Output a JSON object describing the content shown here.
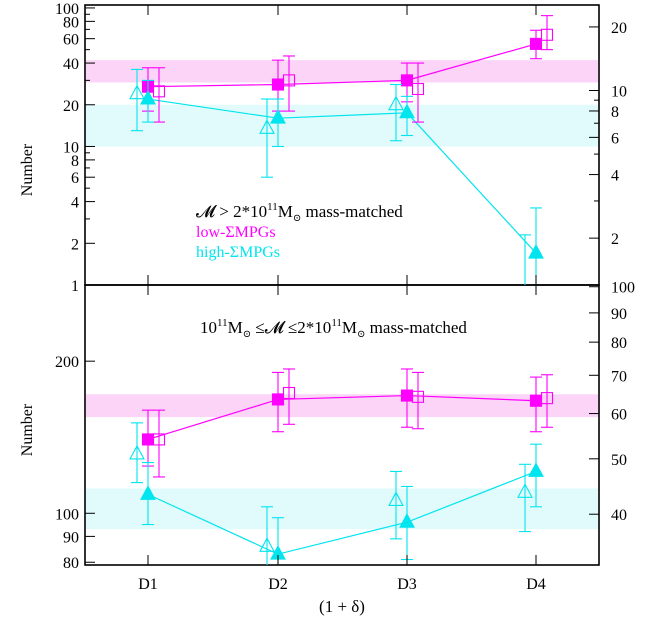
{
  "colors": {
    "low": "#ff00ff",
    "high": "#00e5ee",
    "low_band": "#fbd4f7",
    "high_band": "#e1fbfc"
  },
  "chart_data": [
    {
      "type": "line",
      "scale": "log",
      "ylabel": "Number",
      "xlabel": "",
      "categories": [
        "D1",
        "D2",
        "D3",
        "D4"
      ],
      "ylim": [
        1,
        100
      ],
      "yticks_left": [
        "1",
        "2",
        "4",
        "6",
        "8",
        "10",
        "20",
        "40",
        "60",
        "80",
        "100"
      ],
      "yticks_right": [
        "2",
        "4",
        "6",
        "8",
        "10",
        "20"
      ],
      "annotation": {
        "title_main": "𝓜 > 2*10",
        "title_exp": "11",
        "title_unit": "M",
        "title_sun": "⊙",
        "title_rest": " mass-matched",
        "legend_low": "low-ΣMPGs",
        "legend_high": "high-ΣMPGs"
      },
      "band_low": [
        29,
        42
      ],
      "band_high": [
        10,
        20
      ],
      "series": [
        {
          "key": "low",
          "marker": "filled-square",
          "values": [
            27,
            28,
            30,
            55
          ],
          "err_low": [
            18,
            18,
            21,
            43
          ],
          "err_high": [
            37,
            42,
            40,
            69
          ],
          "connected": true
        },
        {
          "key": "low",
          "marker": "open-square",
          "values": [
            25,
            30,
            26,
            64
          ],
          "err_low": [
            15,
            18,
            15,
            50
          ],
          "err_high": [
            37,
            45,
            40,
            88
          ],
          "connected": false
        },
        {
          "key": "high",
          "marker": "filled-triangle",
          "values": [
            22,
            16,
            17.5,
            1.7
          ],
          "err_low": [
            15,
            10,
            12,
            1
          ],
          "err_high": [
            30,
            22,
            23,
            3.6
          ],
          "connected": true
        },
        {
          "key": "high",
          "marker": "open-triangle",
          "values": [
            24,
            13.5,
            20,
            0
          ],
          "err_low": [
            13,
            6,
            11,
            1
          ],
          "err_high": [
            36,
            22,
            28,
            2.3
          ],
          "connected": false
        }
      ]
    },
    {
      "type": "line",
      "scale": "log",
      "ylabel": "Number",
      "xlabel": "(1 + δ)",
      "categories": [
        "D1",
        "D2",
        "D3",
        "D4"
      ],
      "ylim": [
        80,
        280
      ],
      "yticks_left": [
        "80",
        "90",
        "100",
        "200"
      ],
      "yticks_right": [
        "40",
        "50",
        "60",
        "70",
        "80",
        "90",
        "100"
      ],
      "annotation": {
        "title_a": "10",
        "title_a_exp": "11",
        "title_a_unit": "M",
        "title_sun": "⊙",
        "title_b": " ≤𝓜 ≤2*10",
        "title_b_exp": "11",
        "title_b_unit": "M",
        "title_rest": " mass-matched"
      },
      "band_low": [
        155,
        172
      ],
      "band_high": [
        93,
        112
      ],
      "series": [
        {
          "key": "low",
          "marker": "filled-square",
          "values": [
            140,
            168,
            171,
            167
          ],
          "err_low": [
            124,
            145,
            148,
            145
          ],
          "err_high": [
            160,
            190,
            193,
            186
          ],
          "connected": true
        },
        {
          "key": "low",
          "marker": "open-square",
          "values": [
            140,
            173,
            170,
            169
          ],
          "err_low": [
            118,
            150,
            147,
            148
          ],
          "err_high": [
            160,
            193,
            190,
            188
          ],
          "connected": false
        },
        {
          "key": "high",
          "marker": "filled-triangle",
          "values": [
            109,
            83,
            96,
            121
          ],
          "err_low": [
            95,
            68,
            81,
            103
          ],
          "err_high": [
            126,
            98,
            113,
            137
          ],
          "connected": true
        },
        {
          "key": "high",
          "marker": "open-triangle",
          "values": [
            131,
            86,
            106,
            110
          ],
          "err_low": [
            115,
            71,
            89,
            92
          ],
          "err_high": [
            151,
            103,
            121,
            125
          ],
          "connected": false
        }
      ]
    }
  ]
}
